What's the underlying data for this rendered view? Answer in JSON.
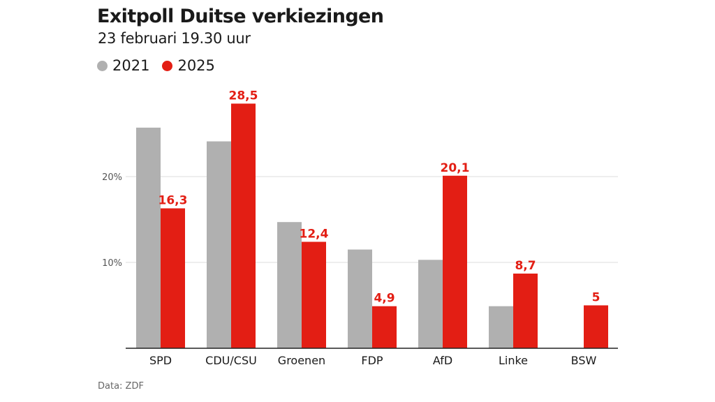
{
  "chart_data": {
    "type": "bar",
    "title": "Exitpoll Duitse verkiezingen",
    "subtitle": "23 februari 19.30 uur",
    "categories": [
      "SPD",
      "CDU/CSU",
      "Groenen",
      "FDP",
      "AfD",
      "Linke",
      "BSW"
    ],
    "series": [
      {
        "name": "2021",
        "color": "#b0b0b0",
        "values": [
          25.7,
          24.1,
          14.7,
          11.5,
          10.3,
          4.9,
          null
        ],
        "labels": [
          "",
          "",
          "",
          "",
          "",
          "",
          ""
        ]
      },
      {
        "name": "2025",
        "color": "#e31e14",
        "values": [
          16.3,
          28.5,
          12.4,
          4.9,
          20.1,
          8.7,
          5
        ],
        "labels": [
          "16,3",
          "28,5",
          "12,4",
          "4,9",
          "20,1",
          "8,7",
          "5"
        ]
      }
    ],
    "yticks": [
      10,
      20
    ],
    "ytick_labels": [
      "10%",
      "20%"
    ],
    "ylim": [
      0,
      30
    ],
    "grid": true,
    "legend_position": "top-left",
    "xlabel": "",
    "ylabel": "",
    "source": "Data: ZDF"
  }
}
